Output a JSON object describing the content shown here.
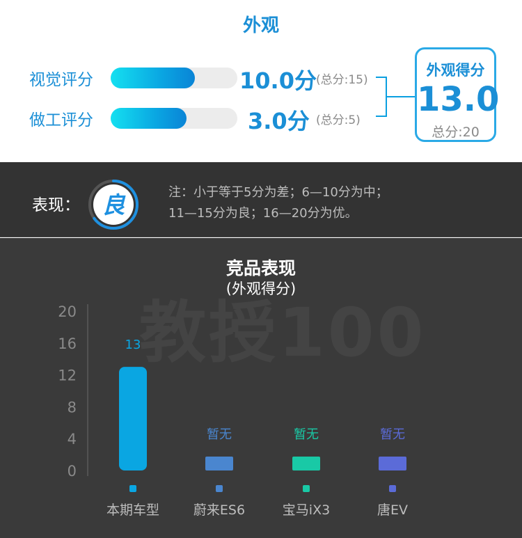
{
  "appearance": {
    "title": "外观",
    "rows": [
      {
        "label": "视觉评分",
        "score": "10.0分",
        "max": "(总分:15)",
        "fraction": 0.667
      },
      {
        "label": "做工评分",
        "score": "3.0分",
        "max": "(总分:5)",
        "fraction": 0.6
      }
    ],
    "total": {
      "label": "外观得分",
      "value": "13.0",
      "max": "总分:20"
    }
  },
  "rating": {
    "label": "表现：",
    "grade": "良",
    "grade_fraction": 0.65,
    "note_line1": "注：小于等于5分为差；6—10分为中；",
    "note_line2": "11—15分为良；16—20分为优。"
  },
  "colors": {
    "accent": "#1b8fd6",
    "bar_self": "#0aa6e2",
    "bar_nio": "#4a86cf",
    "bar_bmw": "#19c9a6",
    "bar_tang": "#5b6bd8"
  },
  "chart_data": {
    "type": "bar",
    "title": "竞品表现",
    "subtitle": "(外观得分)",
    "categories": [
      "本期车型",
      "蔚来ES6",
      "宝马iX3",
      "唐EV"
    ],
    "values": [
      13,
      null,
      null,
      null
    ],
    "data_labels": [
      "13",
      "暂无",
      "暂无",
      "暂无"
    ],
    "bar_colors": [
      "#0aa6e2",
      "#4a86cf",
      "#19c9a6",
      "#5b6bd8"
    ],
    "yticks": [
      "20",
      "16",
      "12",
      "8",
      "4",
      "0"
    ],
    "ylim": [
      0,
      20
    ],
    "grid": false,
    "watermark": "教授100"
  }
}
